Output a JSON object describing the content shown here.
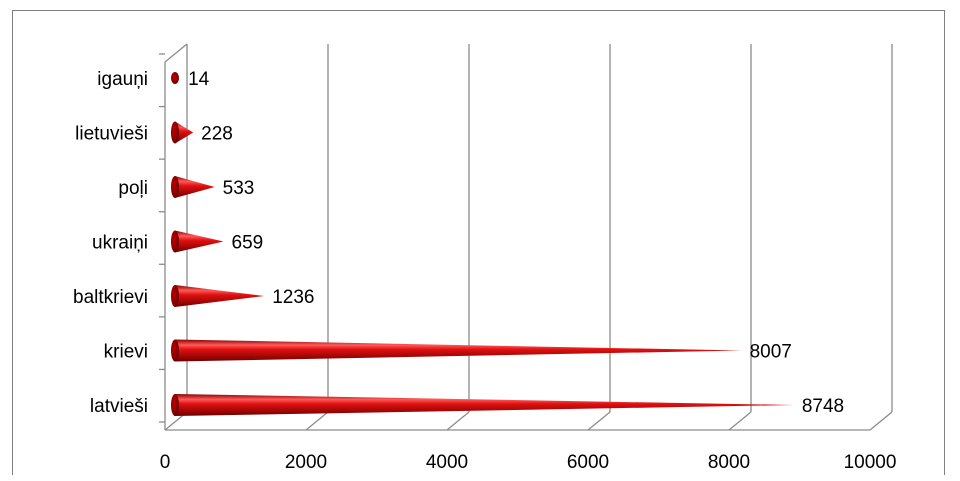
{
  "chart_data": {
    "type": "bar",
    "orientation": "horizontal",
    "style": "3d-cone",
    "categories": [
      "igauņi",
      "lietuvieši",
      "poļi",
      "ukraiņi",
      "baltkrievi",
      "krievi",
      "latvieši"
    ],
    "values": [
      14,
      228,
      533,
      659,
      1236,
      8007,
      8748
    ],
    "value_labels": [
      "14",
      "228",
      "533",
      "659",
      "1236",
      "8007",
      "8748"
    ],
    "xlim": [
      0,
      10000
    ],
    "xticks": [
      0,
      2000,
      4000,
      6000,
      8000,
      10000
    ],
    "xtick_labels": [
      "0",
      "2000",
      "4000",
      "6000",
      "8000",
      "10000"
    ],
    "grid": true,
    "legend": "none",
    "title": "",
    "xlabel": "",
    "ylabel": "",
    "colors": {
      "bar": "#cc0000",
      "bar_dark": "#7a0000",
      "bar_light": "#ff6666",
      "grid": "#8c8c8c"
    }
  }
}
